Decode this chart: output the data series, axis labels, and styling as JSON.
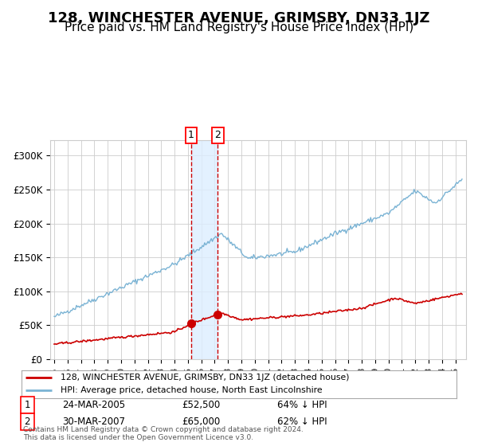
{
  "title": "128, WINCHESTER AVENUE, GRIMSBY, DN33 1JZ",
  "subtitle": "Price paid vs. HM Land Registry's House Price Index (HPI)",
  "title_fontsize": 13,
  "subtitle_fontsize": 11,
  "hpi_color": "#7ab3d4",
  "price_color": "#cc0000",
  "background_color": "#ffffff",
  "grid_color": "#cccccc",
  "ylim": [
    0,
    310000
  ],
  "yticks": [
    0,
    50000,
    100000,
    150000,
    200000,
    250000,
    300000
  ],
  "ytick_labels": [
    "£0",
    "£50K",
    "£100K",
    "£150K",
    "£200K",
    "£250K",
    "£300K"
  ],
  "sale1_date": 2005.23,
  "sale1_price": 52500,
  "sale2_date": 2007.24,
  "sale2_price": 65000,
  "legend_line1": "128, WINCHESTER AVENUE, GRIMSBY, DN33 1JZ (detached house)",
  "legend_line2": "HPI: Average price, detached house, North East Lincolnshire",
  "table_row1_num": "1",
  "table_row1_date": "24-MAR-2005",
  "table_row1_price": "£52,500",
  "table_row1_hpi": "64% ↓ HPI",
  "table_row2_num": "2",
  "table_row2_date": "30-MAR-2007",
  "table_row2_price": "£65,000",
  "table_row2_hpi": "62% ↓ HPI",
  "footer": "Contains HM Land Registry data © Crown copyright and database right 2024.\nThis data is licensed under the Open Government Licence v3.0.",
  "xtick_years": [
    1995,
    1996,
    1997,
    1998,
    1999,
    2000,
    2001,
    2002,
    2003,
    2004,
    2005,
    2006,
    2007,
    2008,
    2009,
    2010,
    2011,
    2012,
    2013,
    2014,
    2015,
    2016,
    2017,
    2018,
    2019,
    2020,
    2021,
    2022,
    2023,
    2024,
    2025
  ]
}
